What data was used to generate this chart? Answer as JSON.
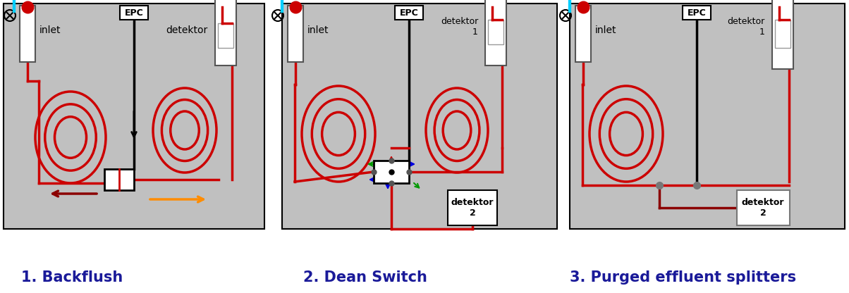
{
  "bg_color": "#c0c0c0",
  "white": "#ffffff",
  "red": "#cc0000",
  "dark_red": "#8b0000",
  "black": "#000000",
  "cyan": "#00cfff",
  "orange": "#ff8c00",
  "green": "#009900",
  "blue_arrow": "#0000dd",
  "label1": "1. Backflush",
  "label2": "2. Dean Switch",
  "label3": "3. Purged effluent splitters",
  "label_color": "#1a1a99",
  "label_fontsize": 15,
  "epc_text": "EPC",
  "inlet_text": "inlet",
  "detektor_text": "detektor",
  "detektor1_text": "detektor\n1",
  "detektor2_text": "detektor\n2"
}
